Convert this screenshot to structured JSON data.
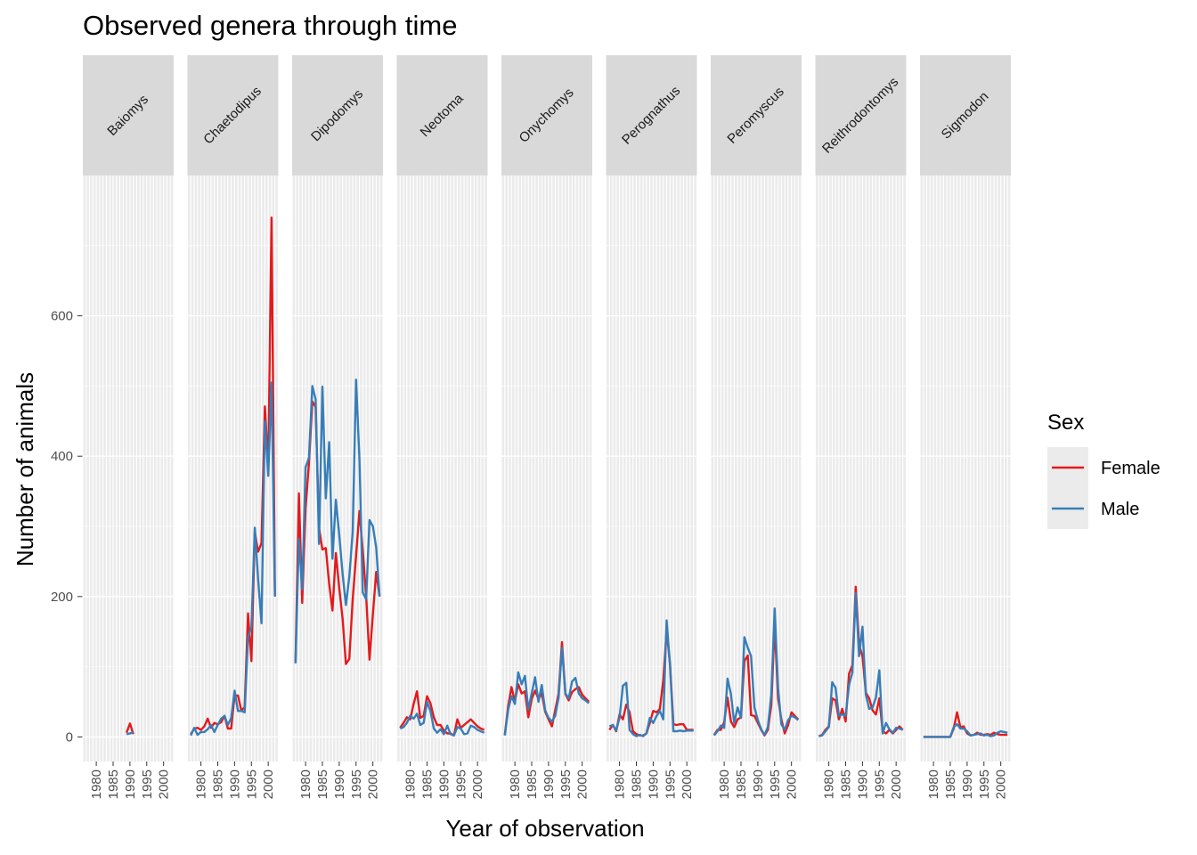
{
  "chart_data": {
    "type": "line",
    "title": "Observed genera through time",
    "xlabel": "Year of observation",
    "ylabel": "Number of animals",
    "facet_labels": [
      "Baiomys",
      "Chaetodipus",
      "Dipodomys",
      "Neotoma",
      "Onychomys",
      "Perognathus",
      "Peromyscus",
      "Reithrodontomys",
      "Sigmodon"
    ],
    "x_ticks": [
      1980,
      1985,
      1990,
      1995,
      2000
    ],
    "y_ticks": [
      0,
      200,
      400,
      600
    ],
    "xlim": [
      1976,
      2003
    ],
    "ylim": [
      -35,
      800
    ],
    "grid": true,
    "legend": {
      "title": "Sex",
      "position": "right"
    },
    "series_meta": [
      {
        "name": "Female",
        "color": "#e41a1c"
      },
      {
        "name": "Male",
        "color": "#377eb8"
      }
    ],
    "facets": [
      {
        "genus": "Baiomys",
        "female": {
          "x": [
            1989,
            1990,
            1991
          ],
          "values": [
            6,
            19,
            4
          ]
        },
        "male": {
          "x": [
            1989,
            1990,
            1991
          ],
          "values": [
            4,
            5,
            7
          ]
        }
      },
      {
        "genus": "Chaetodipus",
        "female": {
          "x": [
            1977,
            1978,
            1979,
            1980,
            1981,
            1982,
            1983,
            1984,
            1985,
            1986,
            1987,
            1988,
            1989,
            1990,
            1991,
            1992,
            1993,
            1994,
            1995,
            1996,
            1997,
            1998,
            1999,
            2000,
            2001,
            2002
          ],
          "values": [
            4,
            12,
            13,
            10,
            15,
            26,
            13,
            20,
            18,
            21,
            30,
            12,
            12,
            59,
            59,
            38,
            42,
            176,
            108,
            292,
            264,
            276,
            471,
            384,
            740,
            200
          ]
        },
        "male": {
          "x": [
            1977,
            1978,
            1979,
            1980,
            1981,
            1982,
            1983,
            1984,
            1985,
            1986,
            1987,
            1988,
            1989,
            1990,
            1991,
            1992,
            1993,
            1994,
            1995,
            1996,
            1997,
            1998,
            1999,
            2000,
            2001,
            2002
          ],
          "values": [
            2,
            13,
            3,
            7,
            7,
            11,
            17,
            7,
            17,
            26,
            30,
            17,
            27,
            66,
            37,
            37,
            35,
            142,
            156,
            298,
            225,
            162,
            450,
            372,
            505,
            200
          ]
        }
      },
      {
        "genus": "Dipodomys",
        "female": {
          "x": [
            1977,
            1978,
            1979,
            1980,
            1981,
            1982,
            1983,
            1984,
            1985,
            1986,
            1987,
            1988,
            1989,
            1990,
            1991,
            1992,
            1993,
            1994,
            1995,
            1996,
            1997,
            1998,
            1999,
            2000,
            2001,
            2002
          ],
          "values": [
            105,
            347,
            191,
            326,
            390,
            478,
            470,
            298,
            267,
            269,
            218,
            180,
            262,
            212,
            168,
            104,
            111,
            196,
            258,
            322,
            266,
            201,
            110,
            175,
            235,
            200
          ]
        },
        "male": {
          "x": [
            1977,
            1978,
            1979,
            1980,
            1981,
            1982,
            1983,
            1984,
            1985,
            1986,
            1987,
            1988,
            1989,
            1990,
            1991,
            1992,
            1993,
            1994,
            1995,
            1996,
            1997,
            1998,
            1999,
            2000,
            2001,
            2002
          ],
          "values": [
            105,
            282,
            210,
            384,
            398,
            500,
            481,
            275,
            499,
            340,
            420,
            254,
            338,
            288,
            232,
            188,
            228,
            292,
            509,
            395,
            206,
            196,
            309,
            300,
            270,
            200
          ]
        }
      },
      {
        "genus": "Neotoma",
        "female": {
          "x": [
            1977,
            1978,
            1979,
            1980,
            1981,
            1982,
            1983,
            1984,
            1985,
            1986,
            1987,
            1988,
            1989,
            1990,
            1991,
            1992,
            1993,
            1994,
            1995,
            1996,
            1997,
            1998,
            1999,
            2000,
            2001,
            2002
          ],
          "values": [
            13,
            20,
            28,
            25,
            47,
            65,
            27,
            30,
            58,
            48,
            28,
            17,
            17,
            9,
            5,
            5,
            2,
            25,
            13,
            17,
            21,
            25,
            20,
            15,
            12,
            10
          ]
        },
        "male": {
          "x": [
            1977,
            1978,
            1979,
            1980,
            1981,
            1982,
            1983,
            1984,
            1985,
            1986,
            1987,
            1988,
            1989,
            1990,
            1991,
            1992,
            1993,
            1994,
            1995,
            1996,
            1997,
            1998,
            1999,
            2000,
            2001,
            2002
          ],
          "values": [
            12,
            14,
            20,
            30,
            26,
            33,
            17,
            20,
            50,
            37,
            12,
            6,
            11,
            4,
            16,
            4,
            2,
            14,
            12,
            4,
            5,
            16,
            14,
            10,
            8,
            6
          ]
        }
      },
      {
        "genus": "Onychomys",
        "female": {
          "x": [
            1977,
            1978,
            1979,
            1980,
            1981,
            1982,
            1983,
            1984,
            1985,
            1986,
            1987,
            1988,
            1989,
            1990,
            1991,
            1992,
            1993,
            1994,
            1995,
            1996,
            1997,
            1998,
            1999,
            2000,
            2001,
            2002
          ],
          "values": [
            3,
            44,
            71,
            51,
            75,
            62,
            65,
            28,
            54,
            66,
            54,
            62,
            36,
            25,
            15,
            38,
            62,
            135,
            61,
            52,
            64,
            68,
            71,
            60,
            55,
            50
          ]
        },
        "male": {
          "x": [
            1977,
            1978,
            1979,
            1980,
            1981,
            1982,
            1983,
            1984,
            1985,
            1986,
            1987,
            1988,
            1989,
            1990,
            1991,
            1992,
            1993,
            1994,
            1995,
            1996,
            1997,
            1998,
            1999,
            2000,
            2001,
            2002
          ],
          "values": [
            2,
            39,
            58,
            47,
            92,
            75,
            87,
            39,
            62,
            85,
            50,
            74,
            38,
            27,
            22,
            30,
            56,
            127,
            62,
            55,
            79,
            84,
            62,
            55,
            52,
            48
          ]
        }
      },
      {
        "genus": "Perognathus",
        "female": {
          "x": [
            1977,
            1978,
            1979,
            1980,
            1981,
            1982,
            1983,
            1984,
            1985,
            1986,
            1987,
            1988,
            1989,
            1990,
            1991,
            1992,
            1993,
            1994,
            1995,
            1996,
            1997,
            1998,
            1999,
            2000,
            2001,
            2002
          ],
          "values": [
            10,
            17,
            8,
            32,
            25,
            46,
            35,
            8,
            4,
            2,
            2,
            5,
            20,
            37,
            35,
            40,
            80,
            152,
            104,
            18,
            17,
            18,
            18,
            10,
            10,
            10
          ]
        },
        "male": {
          "x": [
            1977,
            1978,
            1979,
            1980,
            1981,
            1982,
            1983,
            1984,
            1985,
            1986,
            1987,
            1988,
            1989,
            1990,
            1991,
            1992,
            1993,
            1994,
            1995,
            1996,
            1997,
            1998,
            1999,
            2000,
            2001,
            2002
          ],
          "values": [
            15,
            17,
            9,
            27,
            73,
            77,
            10,
            4,
            1,
            3,
            1,
            5,
            27,
            20,
            30,
            37,
            25,
            166,
            102,
            8,
            8,
            9,
            8,
            9,
            9,
            9
          ]
        }
      },
      {
        "genus": "Peromyscus",
        "female": {
          "x": [
            1977,
            1978,
            1979,
            1980,
            1981,
            1982,
            1983,
            1984,
            1985,
            1986,
            1987,
            1988,
            1989,
            1990,
            1991,
            1992,
            1993,
            1994,
            1995,
            1996,
            1997,
            1998,
            1999,
            2000,
            2001,
            2002
          ],
          "values": [
            3,
            10,
            10,
            21,
            56,
            22,
            14,
            25,
            28,
            108,
            116,
            31,
            30,
            20,
            10,
            2,
            10,
            45,
            160,
            55,
            25,
            5,
            17,
            35,
            30,
            25
          ]
        },
        "male": {
          "x": [
            1977,
            1978,
            1979,
            1980,
            1981,
            1982,
            1983,
            1984,
            1985,
            1986,
            1987,
            1988,
            1989,
            1990,
            1991,
            1992,
            1993,
            1994,
            1995,
            1996,
            1997,
            1998,
            1999,
            2000,
            2001,
            2002
          ],
          "values": [
            2,
            8,
            16,
            13,
            83,
            61,
            20,
            42,
            27,
            142,
            127,
            115,
            42,
            24,
            11,
            3,
            14,
            60,
            183,
            70,
            18,
            10,
            24,
            30,
            28,
            24
          ]
        }
      },
      {
        "genus": "Reithrodontomys",
        "female": {
          "x": [
            1977,
            1978,
            1979,
            1980,
            1981,
            1982,
            1983,
            1984,
            1985,
            1986,
            1987,
            1988,
            1989,
            1990,
            1991,
            1992,
            1993,
            1994,
            1995,
            1996,
            1997,
            1998,
            1999,
            2000,
            2001,
            2002
          ],
          "values": [
            1,
            3,
            10,
            15,
            55,
            52,
            25,
            40,
            22,
            90,
            102,
            214,
            131,
            115,
            63,
            55,
            38,
            32,
            55,
            8,
            5,
            10,
            5,
            10,
            15,
            10
          ]
        },
        "male": {
          "x": [
            1977,
            1978,
            1979,
            1980,
            1981,
            1982,
            1983,
            1984,
            1985,
            1986,
            1987,
            1988,
            1989,
            1990,
            1991,
            1992,
            1993,
            1994,
            1995,
            1996,
            1997,
            1998,
            1999,
            2000,
            2001,
            2002
          ],
          "values": [
            1,
            2,
            8,
            14,
            78,
            70,
            30,
            32,
            30,
            74,
            92,
            205,
            115,
            157,
            60,
            40,
            42,
            56,
            95,
            5,
            20,
            11,
            6,
            13,
            12,
            10
          ]
        }
      },
      {
        "genus": "Sigmodon",
        "female": {
          "x": [
            1977,
            1978,
            1979,
            1980,
            1981,
            1982,
            1983,
            1984,
            1985,
            1986,
            1987,
            1988,
            1989,
            1990,
            1991,
            1992,
            1993,
            1994,
            1995,
            1996,
            1997,
            1998,
            1999,
            2000,
            2001,
            2002
          ],
          "values": [
            0,
            0,
            0,
            0,
            0,
            0,
            0,
            0,
            0,
            12,
            35,
            14,
            15,
            5,
            2,
            3,
            6,
            3,
            3,
            4,
            3,
            6,
            4,
            3,
            3,
            3
          ]
        },
        "male": {
          "x": [
            1977,
            1978,
            1979,
            1980,
            1981,
            1982,
            1983,
            1984,
            1985,
            1986,
            1987,
            1988,
            1989,
            1990,
            1991,
            1992,
            1993,
            1994,
            1995,
            1996,
            1997,
            1998,
            1999,
            2000,
            2001,
            2002
          ],
          "values": [
            0,
            0,
            0,
            0,
            0,
            0,
            0,
            0,
            0,
            14,
            18,
            12,
            12,
            8,
            2,
            3,
            4,
            5,
            2,
            3,
            1,
            2,
            6,
            8,
            7,
            6
          ]
        }
      }
    ]
  }
}
